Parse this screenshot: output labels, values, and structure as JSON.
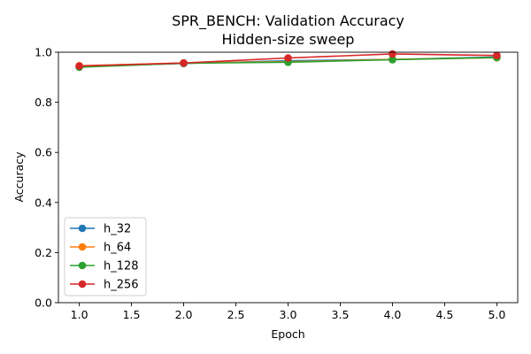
{
  "chart_data": {
    "type": "line",
    "title": "SPR_BENCH: Validation Accuracy",
    "subtitle": "Hidden-size sweep",
    "xlabel": "Epoch",
    "ylabel": "Accuracy",
    "xlim": [
      0.8,
      5.2
    ],
    "ylim": [
      0.0,
      1.0
    ],
    "xticks": [
      "1.0",
      "1.5",
      "2.0",
      "2.5",
      "3.0",
      "3.5",
      "4.0",
      "4.5",
      "5.0"
    ],
    "yticks": [
      "0.0",
      "0.2",
      "0.4",
      "0.6",
      "0.8",
      "1.0"
    ],
    "grid": false,
    "legend_position": "lower-left",
    "x": [
      1,
      2,
      3,
      4,
      5
    ],
    "series": [
      {
        "name": "h_32",
        "color": "#1f77b4",
        "values": [
          0.943,
          0.955,
          0.966,
          0.971,
          0.981
        ]
      },
      {
        "name": "h_64",
        "color": "#ff7f0e",
        "values": [
          0.946,
          0.957,
          0.962,
          0.971,
          0.978
        ]
      },
      {
        "name": "h_128",
        "color": "#2ca02c",
        "values": [
          0.94,
          0.956,
          0.96,
          0.97,
          0.979
        ]
      },
      {
        "name": "h_256",
        "color": "#d62728",
        "values": [
          0.945,
          0.957,
          0.977,
          0.993,
          0.987
        ]
      }
    ]
  }
}
